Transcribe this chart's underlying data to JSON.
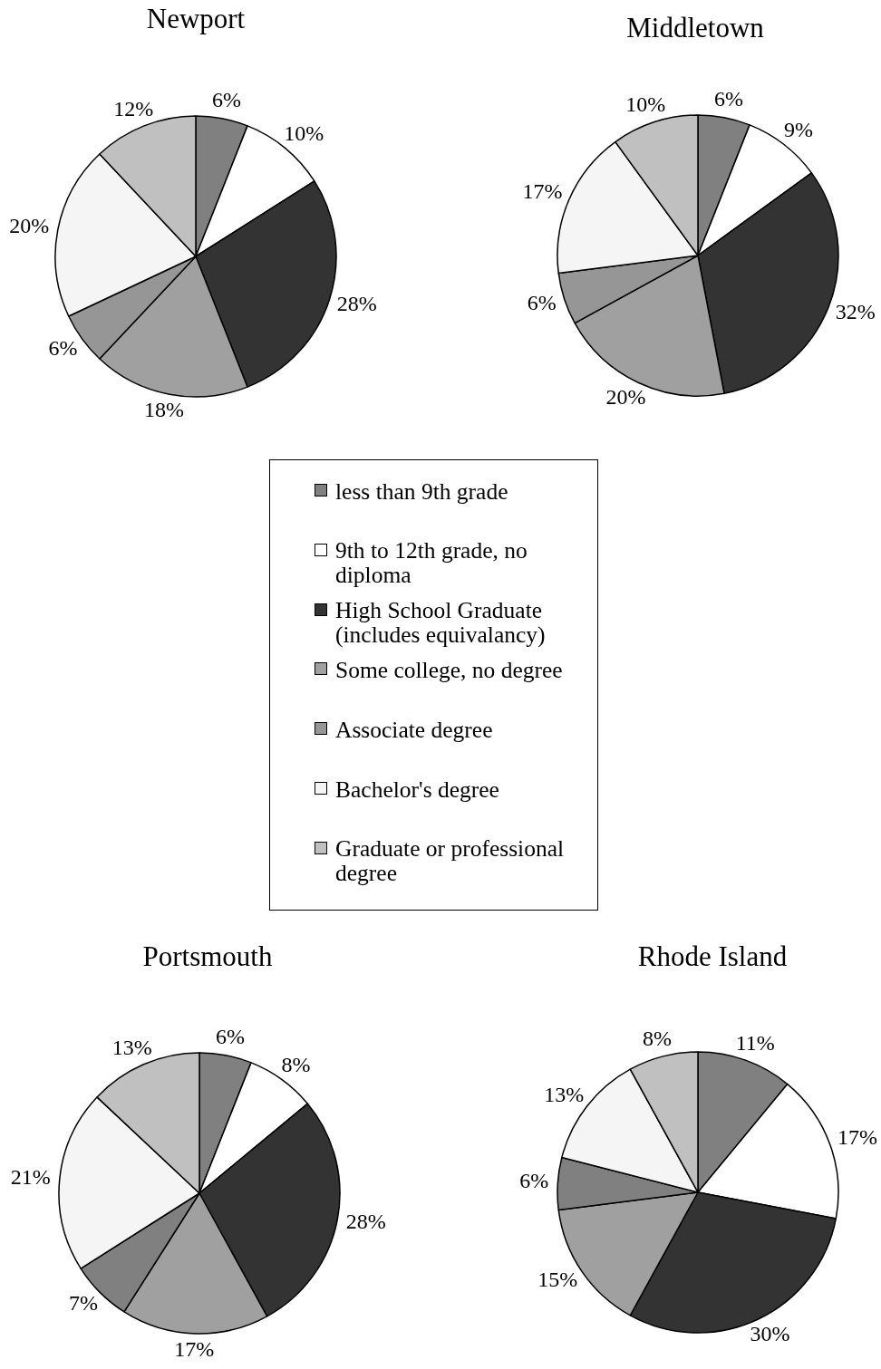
{
  "chart_data": [
    {
      "type": "pie",
      "title": "Newport",
      "categories": [
        "less than 9th grade",
        "9th to 12th grade, no diploma",
        "High School Graduate (includes equivalancy)",
        "Some college, no degree",
        "Associate degree",
        "Bachelor's degree",
        "Graduate or professional degree"
      ],
      "values": [
        6,
        10,
        28,
        18,
        6,
        20,
        12
      ],
      "colors": [
        "#808080",
        "#ffffff",
        "#333333",
        "#a0a0a0",
        "#969696",
        "#f5f5f5",
        "#c0c0c0"
      ],
      "value_labels": [
        "6%",
        "10%",
        "28%",
        "18%",
        "6%",
        "20%",
        "12%"
      ],
      "legend": "bottom"
    },
    {
      "type": "pie",
      "title": "Middletown",
      "categories": [
        null,
        null,
        null,
        null,
        null,
        null,
        null
      ],
      "values": [
        6,
        9,
        32,
        20,
        6,
        17,
        10
      ],
      "colors": [
        "#808080",
        "#ffffff",
        "#333333",
        "#a0a0a0",
        "#969696",
        "#f5f5f5",
        "#c0c0c0"
      ],
      "value_labels": [
        "6%",
        "9%",
        "32%",
        "20%",
        "6%",
        "17%",
        "10%"
      ]
    },
    {
      "type": "pie",
      "title": "Portsmouth",
      "categories": [
        null,
        null,
        null,
        null,
        null,
        null,
        null
      ],
      "values": [
        6,
        8,
        28,
        17,
        7,
        21,
        13
      ],
      "colors": [
        "#808080",
        "#ffffff",
        "#333333",
        "#a0a0a0",
        "#808080",
        "#f5f5f5",
        "#c0c0c0"
      ],
      "value_labels": [
        "6%",
        "8%",
        "28%",
        "17%",
        "7%",
        "21%",
        "13%"
      ]
    },
    {
      "type": "pie",
      "title": "Rhode Island",
      "categories": [
        null,
        null,
        null,
        null,
        null,
        null,
        null
      ],
      "values": [
        11,
        17,
        30,
        15,
        6,
        13,
        8
      ],
      "colors": [
        "#808080",
        "#ffffff",
        "#333333",
        "#a0a0a0",
        "#808080",
        "#f5f5f5",
        "#c0c0c0"
      ],
      "value_labels": [
        "11%",
        "17%",
        "30%",
        "15%",
        "6%",
        "13%",
        "8%"
      ]
    }
  ]
}
